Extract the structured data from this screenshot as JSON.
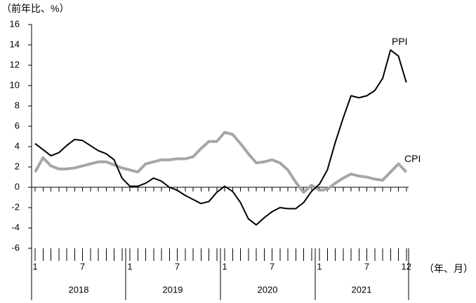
{
  "chart_data": {
    "type": "line",
    "ylabel": "（前年比、%）",
    "xunit": "（年、月）",
    "ylim": [
      -6,
      16
    ],
    "yticks": [
      "16",
      "14",
      "12",
      "10",
      "8",
      "6",
      "4",
      "2",
      "0",
      "-2",
      "-4",
      "-6"
    ],
    "years": [
      "2018",
      "2019",
      "2020",
      "2021"
    ],
    "month_labels": [
      "1",
      "7",
      "1",
      "7",
      "1",
      "7",
      "1",
      "7",
      "12"
    ],
    "x": [
      "2018-01",
      "2018-02",
      "2018-03",
      "2018-04",
      "2018-05",
      "2018-06",
      "2018-07",
      "2018-08",
      "2018-09",
      "2018-10",
      "2018-11",
      "2018-12",
      "2019-01",
      "2019-02",
      "2019-03",
      "2019-04",
      "2019-05",
      "2019-06",
      "2019-07",
      "2019-08",
      "2019-09",
      "2019-10",
      "2019-11",
      "2019-12",
      "2020-01",
      "2020-02",
      "2020-03",
      "2020-04",
      "2020-05",
      "2020-06",
      "2020-07",
      "2020-08",
      "2020-09",
      "2020-10",
      "2020-11",
      "2020-12",
      "2021-01",
      "2021-02",
      "2021-03",
      "2021-04",
      "2021-05",
      "2021-06",
      "2021-07",
      "2021-08",
      "2021-09",
      "2021-10",
      "2021-11",
      "2021-12"
    ],
    "series": [
      {
        "name": "PPI",
        "color": "#000000",
        "values": [
          4.3,
          3.7,
          3.1,
          3.4,
          4.1,
          4.7,
          4.6,
          4.1,
          3.6,
          3.3,
          2.7,
          0.9,
          0.1,
          0.1,
          0.4,
          0.9,
          0.6,
          0.0,
          -0.3,
          -0.8,
          -1.2,
          -1.6,
          -1.4,
          -0.5,
          0.1,
          -0.4,
          -1.5,
          -3.1,
          -3.7,
          -3.0,
          -2.4,
          -2.0,
          -2.1,
          -2.1,
          -1.5,
          -0.4,
          0.3,
          1.7,
          4.4,
          6.8,
          9.0,
          8.8,
          9.0,
          9.5,
          10.7,
          13.5,
          12.9,
          10.3
        ]
      },
      {
        "name": "CPI",
        "color": "#a6a6a6",
        "values": [
          1.5,
          2.9,
          2.1,
          1.8,
          1.8,
          1.9,
          2.1,
          2.3,
          2.5,
          2.5,
          2.2,
          1.9,
          1.7,
          1.5,
          2.3,
          2.5,
          2.7,
          2.7,
          2.8,
          2.8,
          3.0,
          3.8,
          4.5,
          4.5,
          5.4,
          5.2,
          4.3,
          3.3,
          2.4,
          2.5,
          2.7,
          2.4,
          1.7,
          0.5,
          -0.5,
          0.2,
          -0.3,
          -0.2,
          0.4,
          0.9,
          1.3,
          1.1,
          1.0,
          0.8,
          0.7,
          1.5,
          2.3,
          1.5
        ]
      }
    ]
  }
}
